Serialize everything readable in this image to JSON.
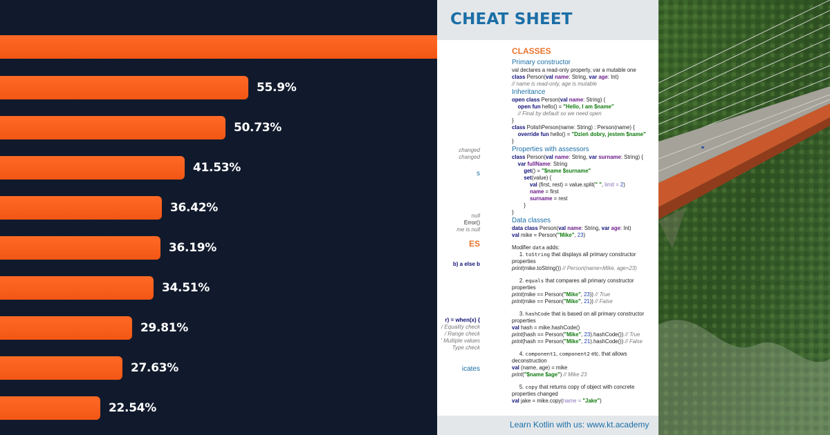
{
  "bar_chart": {
    "bars": [
      {
        "label": "",
        "value": 100
      },
      {
        "label": "55.9%",
        "value": 55.9
      },
      {
        "label": "50.73%",
        "value": 50.73
      },
      {
        "label": "41.53%",
        "value": 41.53
      },
      {
        "label": "36.42%",
        "value": 36.42
      },
      {
        "label": "36.19%",
        "value": 36.19
      },
      {
        "label": "34.51%",
        "value": 34.51
      },
      {
        "label": "29.81%",
        "value": 29.81
      },
      {
        "label": "27.63%",
        "value": 27.63
      },
      {
        "label": "22.54%",
        "value": 22.54
      }
    ],
    "colors": {
      "background": "#111a2c",
      "bar": "#f35614",
      "text": "#ffffff"
    }
  },
  "cheat_sheet": {
    "title": "CHEAT SHEET",
    "footer": "Learn Kotlin with us: www.kt.academy",
    "left_fragments": {
      "f1": "changed",
      "f2": "changed",
      "f3": "s",
      "f4": "null",
      "f5": "Error()",
      "f6": "me is null",
      "f7": "ES",
      "f8": "b) a else b",
      "f9": "r) = when(x) {",
      "f10": "/ Equality check",
      "f11": "/ Range check",
      "f12": "' Multiple values",
      "f13": "Type check",
      "f14": "icates"
    },
    "classes": {
      "heading": "CLASSES",
      "primary": {
        "heading": "Primary constructor",
        "l1": "val declares a read-only property, var a mutable one",
        "l2a": "class",
        "l2b": " Person(",
        "l2c": "val",
        "l2d": " ",
        "l2e": "name",
        "l2f": ": String, ",
        "l2g": "var",
        "l2h": " ",
        "l2i": "age",
        "l2j": ": Int)",
        "l3": "// name is read-only, age is mutable"
      },
      "inheritance": {
        "heading": "Inheritance",
        "l1a": "open class",
        "l1b": " Person(",
        "l1c": "val",
        "l1d": " ",
        "l1e": "name",
        "l1f": ": String) {",
        "l2a": "    open fun",
        "l2b": " hello() = ",
        "l2c": "\"Hello, I am $name\"",
        "l3": "    // Final by default so we need open",
        "l4": "}",
        "l5a": "class",
        "l5b": " PolishPerson(name: String) : Person(name) {",
        "l6a": "    override fun",
        "l6b": " hello() = ",
        "l6c": "\"Dzień dobry, jestem $name\"",
        "l7": "}"
      },
      "assessors": {
        "heading": "Properties with assessors",
        "l1a": "class",
        "l1b": " Person(",
        "l1c": "val",
        "l1d": " ",
        "l1e": "name",
        "l1f": ": String, ",
        "l1g": "var",
        "l1h": " ",
        "l1i": "surname",
        "l1j": ": String) {",
        "l2a": "    var",
        "l2b": " ",
        "l2c": "fullName",
        "l2d": ": String",
        "l3a": "        get",
        "l3b": "() = ",
        "l3c": "\"$name $surname\"",
        "l4a": "        set",
        "l4b": "(value) {",
        "l5a": "            val",
        "l5b": " (first, rest) = value.split(",
        "l5c": "\" \"",
        "l5d": ", ",
        "l5e": "limit",
        "l5f": " = ",
        "l5g": "2",
        "l5h": ")",
        "l6a": "            name",
        "l6b": " = first",
        "l7a": "            surname",
        "l7b": " = rest",
        "l8": "        }",
        "l9": "}"
      },
      "data_classes": {
        "heading": "Data classes",
        "l1a": "data class",
        "l1b": " Person(",
        "l1c": "val",
        "l1d": " ",
        "l1e": "name",
        "l1f": ": String, ",
        "l1g": "var",
        "l1h": " ",
        "l1i": "age",
        "l1j": ": Int)",
        "l2a": "val",
        "l2b": " mike = Person(",
        "l2c": "\"Mike\"",
        "l2d": ", ",
        "l2e": "23",
        "l2f": ")",
        "mod_a": "Modifier ",
        "mod_b": "data",
        "mod_c": " adds:",
        "i1a": "     1. ",
        "i1b": "toString",
        "i1c": " that displays all primary constructor properties",
        "i1d": "print",
        "i1e": "(mike.toString()) ",
        "i1f": "// Person(name=Mike, age=23)",
        "i2a": "     2. ",
        "i2b": "equals",
        "i2c": " that compares all primary constructor properties",
        "i2d": "print",
        "i2e": "(mike == Person(",
        "i2f": "\"Mike\"",
        "i2g": ", ",
        "i2h": "23",
        "i2i": ")) ",
        "i2j": "// True",
        "i2k": "print",
        "i2l": "(mike == Person(",
        "i2m": "\"Mike\"",
        "i2n": ", ",
        "i2o": "21",
        "i2p": ")) ",
        "i2q": "// False",
        "i3a": "     3. ",
        "i3b": "hashCode",
        "i3c": " that is based on all primary constructor properties",
        "i3d": "val",
        "i3e": " hash = mike.hashCode()",
        "i3f": "print",
        "i3g": "(hash == Person(",
        "i3h": "\"Mike\"",
        "i3i": ", ",
        "i3j": "23",
        "i3k": ").hashCode()) ",
        "i3l": "// True",
        "i3m": "print",
        "i3n": "(hash == Person(",
        "i3o": "\"Mike\"",
        "i3p": ", ",
        "i3q": "21",
        "i3r": ").hashCode()) ",
        "i3s": "// False",
        "i4a": "     4. ",
        "i4b": "component1",
        "i4c": ", ",
        "i4d": "component2",
        "i4e": " etc. that allows deconstruction",
        "i4f": "val",
        "i4g": " (name, age) = mike",
        "i4h": "print",
        "i4i": "(",
        "i4j": "\"$name $age\"",
        "i4k": ") ",
        "i4l": "// Mike 23",
        "i5a": "     5. ",
        "i5b": "copy",
        "i5c": " that returns copy of object with concrete properties changed",
        "i5d": "val",
        "i5e": " jake = mike.copy(",
        "i5f": "name",
        "i5g": " = ",
        "i5h": "\"Jake\"",
        "i5i": ")"
      }
    },
    "colors": {
      "heading": "#1b6ea6",
      "section": "#e8742c",
      "keyword": "#10107a",
      "string": "#0f7a0f"
    }
  },
  "photo": {
    "subject": "aerial-bridge-forest"
  }
}
